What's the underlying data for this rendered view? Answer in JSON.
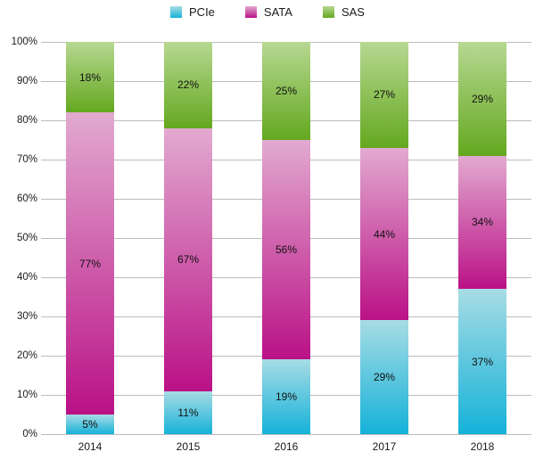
{
  "chart_data": {
    "type": "bar",
    "variant": "stacked-percent",
    "categories": [
      "2014",
      "2015",
      "2016",
      "2017",
      "2018"
    ],
    "series": [
      {
        "name": "PCIe",
        "values": [
          5,
          11,
          19,
          29,
          37
        ],
        "color_top": "#a7dce4",
        "color_bottom": "#15b2d9"
      },
      {
        "name": "SATA",
        "values": [
          77,
          67,
          56,
          44,
          34
        ],
        "color_top": "#e2aad0",
        "color_bottom": "#ba1186"
      },
      {
        "name": "SAS",
        "values": [
          18,
          22,
          25,
          27,
          29
        ],
        "color_top": "#b7d892",
        "color_bottom": "#64a81f"
      }
    ],
    "stack_order_bottom_to_top": [
      "PCIe",
      "SATA",
      "SAS"
    ],
    "data_label_suffix": "%",
    "title": "",
    "xlabel": "",
    "ylabel": "",
    "ylim": [
      0,
      100
    ],
    "y_ticks": [
      "0%",
      "10%",
      "20%",
      "30%",
      "40%",
      "50%",
      "60%",
      "70%",
      "80%",
      "90%",
      "100%"
    ],
    "grid": true,
    "gridline_color": "#bcbcbc",
    "legend_position": "top"
  }
}
